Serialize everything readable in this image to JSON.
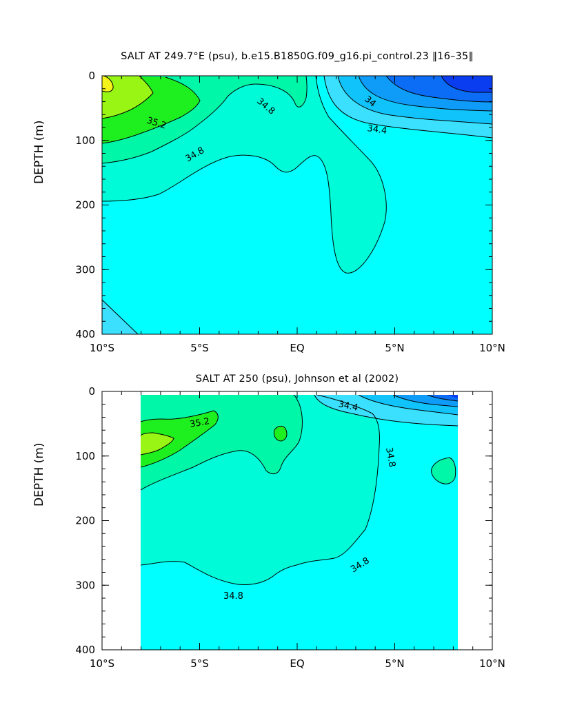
{
  "chart_data": [
    {
      "type": "heatmap",
      "subtype": "contour",
      "title": "SALT AT 249.7°E (psu), b.e15.B1850G.f09_g16.pi_control.23 ‖16–35‖",
      "xlabel": "",
      "ylabel": "DEPTH (m)",
      "x_ticks": [
        "10°S",
        "5°S",
        "EQ",
        "5°N",
        "10°N"
      ],
      "y_ticks": [
        "0",
        "100",
        "200",
        "300",
        "400"
      ],
      "xlim": [
        -10,
        10
      ],
      "ylim": [
        400,
        0
      ],
      "contour_labels": [
        "35.2",
        "34.8",
        "34.8",
        "34.8",
        "34",
        "34.4"
      ],
      "levels": [
        33.6,
        33.8,
        34.0,
        34.2,
        34.4,
        34.6,
        34.8,
        35.0,
        35.2,
        35.4,
        35.6
      ]
    },
    {
      "type": "heatmap",
      "subtype": "contour",
      "title": "SALT AT 250 (psu), Johnson et al (2002)",
      "xlabel": "",
      "ylabel": "DEPTH (m)",
      "x_ticks": [
        "10°S",
        "5°S",
        "EQ",
        "5°N",
        "10°N"
      ],
      "y_ticks": [
        "0",
        "100",
        "200",
        "300",
        "400"
      ],
      "xlim": [
        -10,
        10
      ],
      "ylim": [
        400,
        0
      ],
      "contour_labels": [
        "35.2",
        "34.4",
        "34.8",
        "34.8",
        "34.8"
      ],
      "levels": [
        33.6,
        33.8,
        34.0,
        34.2,
        34.4,
        34.6,
        34.8,
        35.0,
        35.2,
        35.4,
        35.6
      ]
    }
  ],
  "colors": {
    "deep_blue": "#0a3cf0",
    "blue": "#0b6cf5",
    "mid_blue": "#0e9cf8",
    "light_blue": "#10c4fb",
    "sky": "#3ae0fd",
    "cyan": "#00ffff",
    "aqua": "#00fbd8",
    "sea_green": "#00f7a8",
    "green": "#1ef020",
    "lime": "#99f514",
    "yellow": "#f4f41a"
  }
}
